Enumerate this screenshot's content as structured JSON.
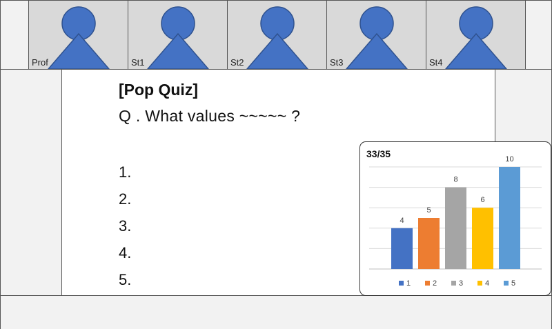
{
  "participants": [
    {
      "label": "Prof"
    },
    {
      "label": "St1"
    },
    {
      "label": "St2"
    },
    {
      "label": "St3"
    },
    {
      "label": "St4"
    }
  ],
  "avatar_color": "#4472c4",
  "quiz": {
    "title": "[Pop Quiz]",
    "question": "Q . What values ~~~~~ ?",
    "options": [
      "1.",
      "2.",
      "3.",
      "4.",
      "5."
    ]
  },
  "response_count": "33/35",
  "chart_data": {
    "type": "bar",
    "categories": [
      "1",
      "2",
      "3",
      "4",
      "5"
    ],
    "values": [
      4,
      5,
      8,
      6,
      10
    ],
    "colors": [
      "#4472c4",
      "#ed7d31",
      "#a5a5a5",
      "#ffc000",
      "#5b9bd5"
    ],
    "ylim": [
      0,
      10
    ],
    "grid": true,
    "legend": "bottom"
  }
}
